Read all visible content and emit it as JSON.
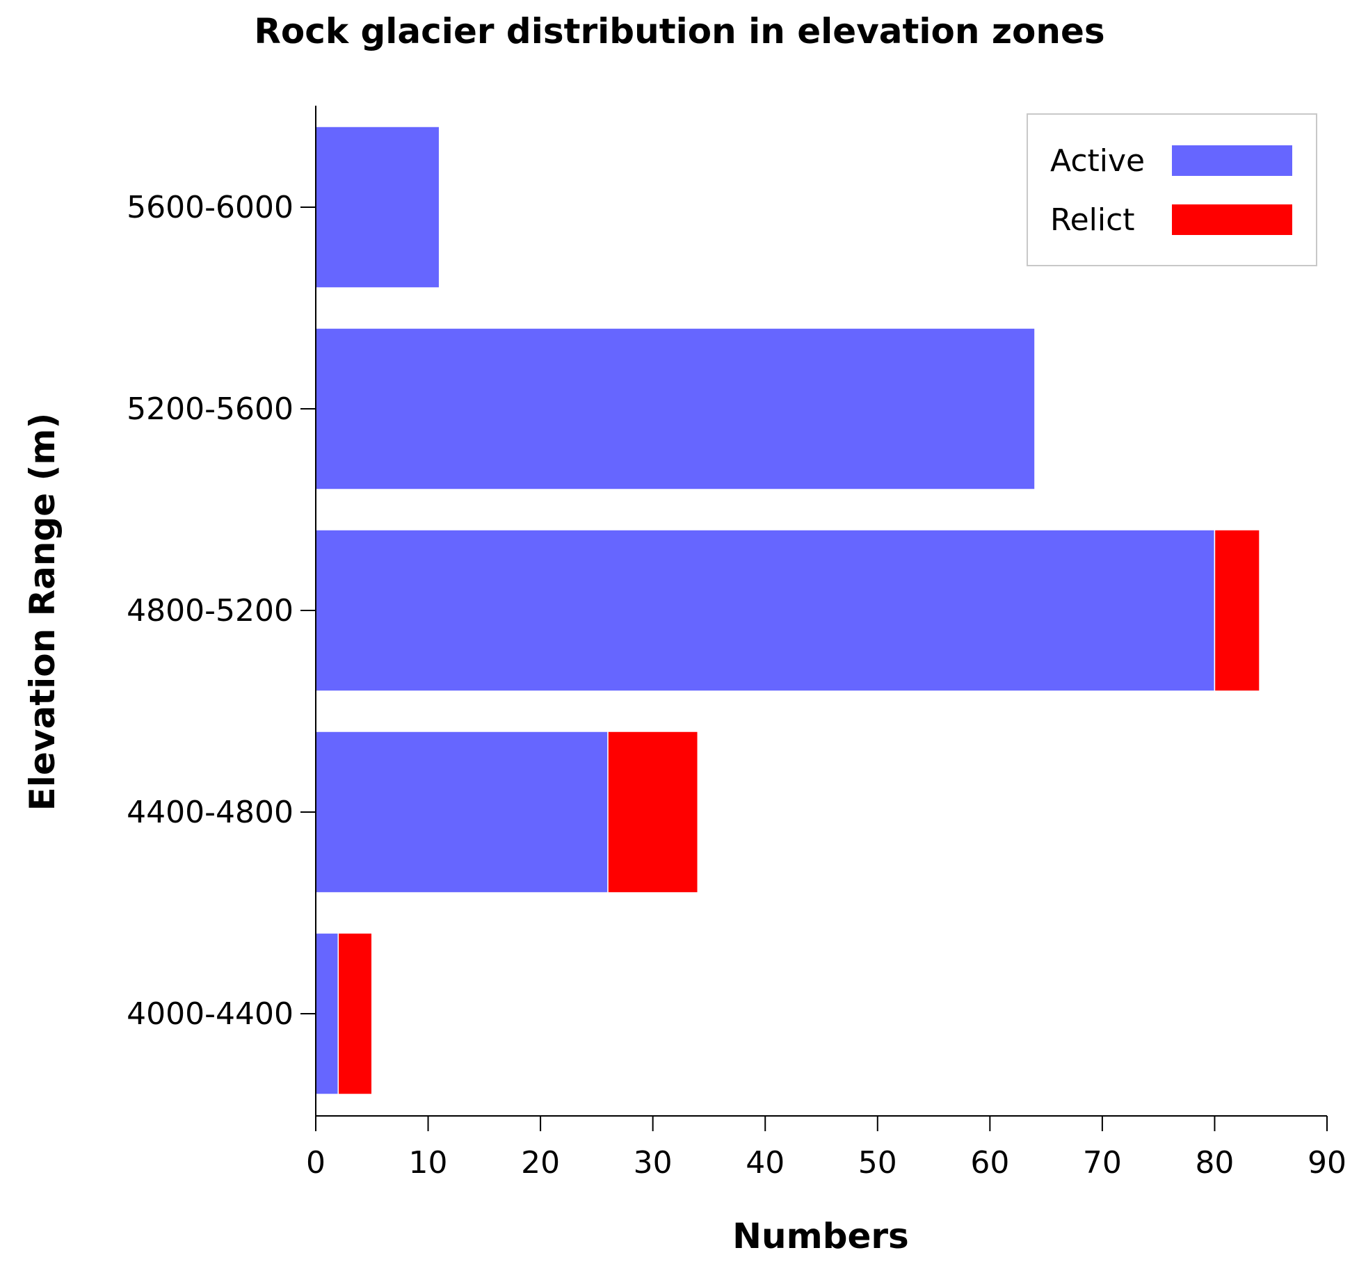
{
  "chart_data": {
    "type": "bar",
    "orientation": "horizontal",
    "stacked": true,
    "title": "Rock glacier distribution in elevation zones",
    "xlabel": "Numbers",
    "ylabel": "Elevation Range (m)",
    "xlim": [
      0,
      90
    ],
    "xticks": [
      0,
      10,
      20,
      30,
      40,
      50,
      60,
      70,
      80,
      90
    ],
    "categories": [
      "5600-6000",
      "5200-5600",
      "4800-5200",
      "4400-4800",
      "4000-4400"
    ],
    "series": [
      {
        "name": "Active",
        "color": "#6666ff",
        "values": [
          11,
          64,
          80,
          26,
          2
        ]
      },
      {
        "name": "Relict",
        "color": "#ff0000",
        "values": [
          0,
          0,
          4,
          8,
          3
        ]
      }
    ],
    "legend_position": "top-right",
    "grid": false
  }
}
